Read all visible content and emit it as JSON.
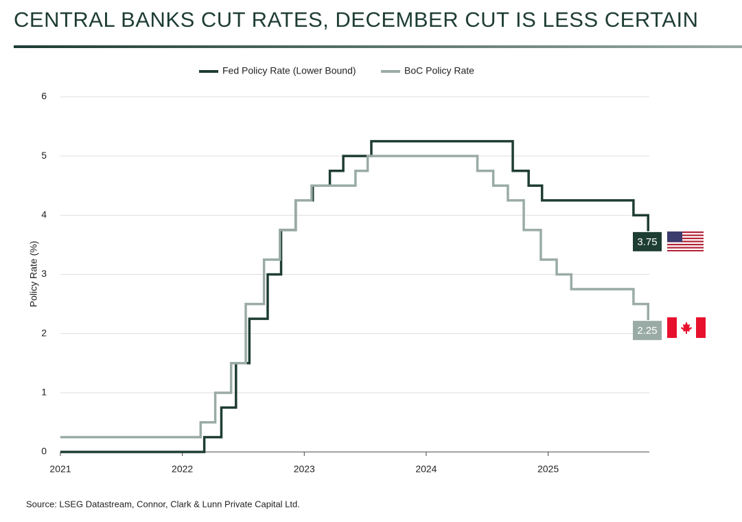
{
  "chart_data": {
    "type": "line",
    "step": "post",
    "title": "CENTRAL BANKS CUT RATES, DECEMBER CUT IS LESS CERTAIN",
    "y_label": "Policy Rate (%)",
    "source": "Source:  LSEG Datastream, Connor, Clark & Lunn Private Capital Ltd.",
    "xlim": [
      2021,
      2025.83
    ],
    "xticks": [
      2021,
      2022,
      2023,
      2024,
      2025
    ],
    "ylim": [
      0,
      6
    ],
    "yticks": [
      0,
      1,
      2,
      3,
      4,
      5,
      6
    ],
    "grid": true,
    "legend": "top",
    "series": [
      {
        "name": "Fed Policy Rate (Lower Bound)",
        "color": "#1e3d33",
        "x": [
          2021,
          2022.18,
          2022.32,
          2022.44,
          2022.55,
          2022.7,
          2022.81,
          2022.93,
          2023.07,
          2023.21,
          2023.32,
          2023.55,
          2024.71,
          2024.84,
          2024.95,
          2025.7,
          2025.82,
          2025.83
        ],
        "values": [
          0,
          0.25,
          0.75,
          1.5,
          2.25,
          3.0,
          3.75,
          4.25,
          4.5,
          4.75,
          5.0,
          5.25,
          4.75,
          4.5,
          4.25,
          4.0,
          3.75,
          3.75
        ]
      },
      {
        "name": "BoC Policy Rate",
        "color": "#9aaba6",
        "x": [
          2021,
          2022.15,
          2022.27,
          2022.4,
          2022.52,
          2022.67,
          2022.8,
          2022.93,
          2023.06,
          2023.42,
          2023.52,
          2024.42,
          2024.55,
          2024.67,
          2024.8,
          2024.94,
          2025.07,
          2025.19,
          2025.7,
          2025.82,
          2025.83
        ],
        "values": [
          0.25,
          0.5,
          1.0,
          1.5,
          2.5,
          3.25,
          3.75,
          4.25,
          4.5,
          4.75,
          5.0,
          4.75,
          4.5,
          4.25,
          3.75,
          3.25,
          3.0,
          2.75,
          2.5,
          2.25,
          2.25
        ]
      }
    ]
  }
}
